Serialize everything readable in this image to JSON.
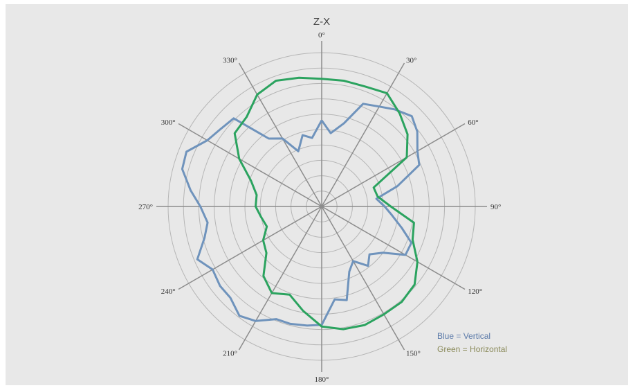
{
  "chart_data": {
    "type": "polar-line",
    "title": "Z-X",
    "angle_labels": [
      "0°",
      "30°",
      "60°",
      "90°",
      "120°",
      "150°",
      "180°",
      "210°",
      "240°",
      "270°",
      "300°",
      "330°"
    ],
    "ring_count": 10,
    "grid": true,
    "angle_direction": "clockwise",
    "zero_at": "top",
    "series": [
      {
        "color": "#6f93bc",
        "points": [
          [
            0,
            5.6
          ],
          [
            7,
            4.8
          ],
          [
            15,
            5.6
          ],
          [
            22,
            7.2
          ],
          [
            30,
            7.5
          ],
          [
            37,
            7.9
          ],
          [
            45,
            8.3
          ],
          [
            52,
            7.9
          ],
          [
            60,
            7.2
          ],
          [
            67,
            6.9
          ],
          [
            75,
            5.1
          ],
          [
            82,
            3.6
          ],
          [
            90,
            4.1
          ],
          [
            97,
            4.6
          ],
          [
            105,
            5.4
          ],
          [
            112,
            6.3
          ],
          [
            120,
            6.3
          ],
          [
            127,
            5.0
          ],
          [
            135,
            4.4
          ],
          [
            142,
            4.9
          ],
          [
            150,
            4.1
          ],
          [
            157,
            4.6
          ],
          [
            165,
            6.3
          ],
          [
            172,
            6.1
          ],
          [
            180,
            7.7
          ],
          [
            187,
            7.8
          ],
          [
            195,
            7.9
          ],
          [
            202,
            7.9
          ],
          [
            210,
            8.6
          ],
          [
            217,
            8.9
          ],
          [
            225,
            8.4
          ],
          [
            232,
            8.4
          ],
          [
            240,
            8.2
          ],
          [
            247,
            8.8
          ],
          [
            255,
            7.9
          ],
          [
            262,
            7.5
          ],
          [
            270,
            7.9
          ],
          [
            277,
            8.6
          ],
          [
            285,
            9.4
          ],
          [
            292,
            9.5
          ],
          [
            300,
            8.6
          ],
          [
            307,
            8.3
          ],
          [
            315,
            8.1
          ],
          [
            322,
            5.6
          ],
          [
            330,
            5.1
          ],
          [
            337,
            3.9
          ],
          [
            345,
            4.8
          ],
          [
            352,
            4.5
          ],
          [
            360,
            5.6
          ]
        ]
      },
      {
        "color": "#2ba35f",
        "points": [
          [
            0,
            8.3
          ],
          [
            10,
            8.3
          ],
          [
            20,
            8.3
          ],
          [
            30,
            8.5
          ],
          [
            40,
            7.9
          ],
          [
            50,
            7.3
          ],
          [
            60,
            6.4
          ],
          [
            70,
            3.6
          ],
          [
            80,
            3.7
          ],
          [
            90,
            4.5
          ],
          [
            100,
            6.1
          ],
          [
            110,
            6.3
          ],
          [
            120,
            7.2
          ],
          [
            130,
            7.9
          ],
          [
            140,
            8.1
          ],
          [
            150,
            8.1
          ],
          [
            160,
            8.2
          ],
          [
            170,
            8.1
          ],
          [
            180,
            7.8
          ],
          [
            190,
            6.9
          ],
          [
            200,
            6.1
          ],
          [
            210,
            6.5
          ],
          [
            220,
            5.9
          ],
          [
            230,
            4.7
          ],
          [
            240,
            4.4
          ],
          [
            250,
            3.8
          ],
          [
            260,
            4.0
          ],
          [
            270,
            4.3
          ],
          [
            280,
            4.3
          ],
          [
            290,
            4.9
          ],
          [
            300,
            6.2
          ],
          [
            310,
            7.4
          ],
          [
            320,
            7.6
          ],
          [
            330,
            8.4
          ],
          [
            340,
            8.7
          ],
          [
            350,
            8.5
          ],
          [
            360,
            8.3
          ]
        ]
      }
    ],
    "legend": {
      "placement": "bottom-right",
      "entries": [
        {
          "text": "Blue = Vertical",
          "color": "#5b7aa9"
        },
        {
          "text": "Green = Horizontal",
          "color": "#8a8a5a"
        }
      ]
    }
  }
}
